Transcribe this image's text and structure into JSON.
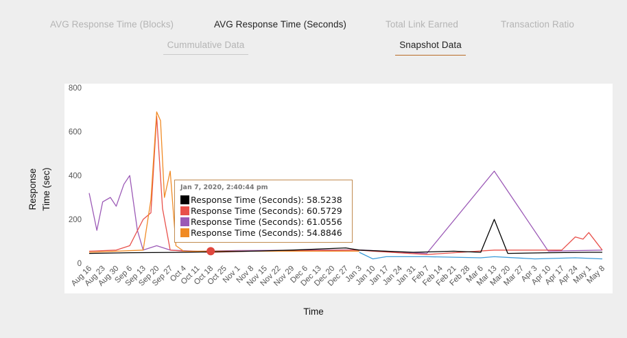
{
  "tabs": [
    {
      "label": "AVG Response Time (Blocks)",
      "active": false
    },
    {
      "label": "AVG Response Time (Seconds)",
      "active": true
    },
    {
      "label": "Total Link Earned",
      "active": false
    },
    {
      "label": "Transaction Ratio",
      "active": false
    },
    {
      "label": "Cummulative Data",
      "active": false
    },
    {
      "label": "Snapshot Data",
      "active": true
    }
  ],
  "colors": {
    "black_series": "#000000",
    "red_series": "#e8504a",
    "purple_series": "#9b59b6",
    "orange_series": "#f08a24",
    "blue_series": "#3a9ad9",
    "tooltip_border": "#c08a4e",
    "marker": "#e0473e"
  },
  "tooltip": {
    "time": "Jan 7, 2020, 2:40:44 pm",
    "rows": [
      {
        "label": "Response Time (Seconds): 58.5238",
        "color": "#000000"
      },
      {
        "label": "Response Time (Seconds): 60.5729",
        "color": "#e8504a"
      },
      {
        "label": "Response Time (Seconds): 61.0556",
        "color": "#9b59b6"
      },
      {
        "label": "Response Time (Seconds): 54.8846",
        "color": "#f08a24"
      }
    ]
  },
  "chart_data": {
    "type": "line",
    "xlabel": "Time",
    "ylabel": "Response Time (sec)",
    "ylim": [
      0,
      800
    ],
    "yticks": [
      0,
      200,
      400,
      600,
      800
    ],
    "xticks": [
      "Aug 16",
      "Aug 23",
      "Aug 30",
      "Sep 6",
      "Sep 13",
      "Sep 20",
      "Sep 27",
      "Oct 4",
      "Oct 11",
      "Oct 18",
      "Oct 25",
      "Nov 1",
      "Nov 8",
      "Nov 15",
      "Nov 22",
      "Nov 29",
      "Dec 6",
      "Dec 13",
      "Dec 20",
      "Dec 27",
      "Jan 3",
      "Jan 10",
      "Jan 17",
      "Jan 24",
      "Jan 31",
      "Feb 7",
      "Feb 14",
      "Feb 21",
      "Feb 28",
      "Mar 6",
      "Mar 13",
      "Mar 20",
      "Mar 27",
      "Apr 3",
      "Apr 10",
      "Apr 17",
      "Apr 24",
      "May 1",
      "May 8"
    ],
    "grid": false,
    "legend": "none",
    "series": [
      {
        "color": "#9b59b6",
        "x": [
          "Aug 16",
          "Aug 20",
          "Aug 23",
          "Aug 27",
          "Aug 30",
          "Sep 3",
          "Sep 6",
          "Sep 10",
          "Sep 13",
          "Sep 20",
          "Sep 27",
          "Oct 11",
          "Nov 1",
          "Jan 3",
          "Feb 7",
          "Mar 13",
          "Apr 10",
          "May 8"
        ],
        "values": [
          320,
          150,
          280,
          300,
          260,
          360,
          400,
          150,
          60,
          80,
          60,
          55,
          58,
          61,
          45,
          420,
          55,
          60
        ]
      },
      {
        "color": "#e8504a",
        "x": [
          "Aug 16",
          "Aug 30",
          "Sep 6",
          "Sep 13",
          "Sep 17",
          "Sep 20",
          "Sep 23",
          "Sep 27",
          "Oct 4",
          "Oct 18",
          "Nov 8",
          "Jan 3",
          "Jan 10",
          "Feb 7",
          "Mar 13",
          "Apr 17",
          "Apr 24",
          "Apr 28",
          "May 1",
          "May 8"
        ],
        "values": [
          55,
          60,
          80,
          200,
          230,
          670,
          250,
          60,
          55,
          50,
          55,
          60,
          55,
          40,
          60,
          60,
          120,
          110,
          140,
          60
        ]
      },
      {
        "color": "#f08a24",
        "x": [
          "Aug 16",
          "Sep 13",
          "Sep 17",
          "Sep 20",
          "Sep 22",
          "Sep 24",
          "Sep 27",
          "Sep 30",
          "Oct 4",
          "Oct 18",
          "Jan 3"
        ],
        "values": [
          50,
          60,
          290,
          690,
          650,
          300,
          420,
          80,
          55,
          55,
          55
        ]
      },
      {
        "color": "#3a9ad9",
        "x": [
          "Jan 3",
          "Jan 10",
          "Jan 17",
          "Feb 7",
          "Mar 6",
          "Mar 13",
          "Apr 3",
          "Apr 24",
          "May 8"
        ],
        "values": [
          50,
          20,
          30,
          30,
          25,
          30,
          20,
          25,
          20
        ]
      },
      {
        "color": "#000000",
        "x": [
          "Aug 16",
          "Sep 6",
          "Oct 4",
          "Nov 8",
          "Nov 29",
          "Dec 27",
          "Jan 3",
          "Jan 31",
          "Feb 21",
          "Mar 6",
          "Mar 13",
          "Mar 20",
          "Apr 10",
          "May 1",
          "May 8"
        ],
        "values": [
          45,
          48,
          50,
          55,
          60,
          70,
          60,
          50,
          55,
          50,
          200,
          45,
          48,
          50,
          50
        ]
      }
    ],
    "highlight": {
      "x": "Oct 18",
      "y": 55
    }
  }
}
